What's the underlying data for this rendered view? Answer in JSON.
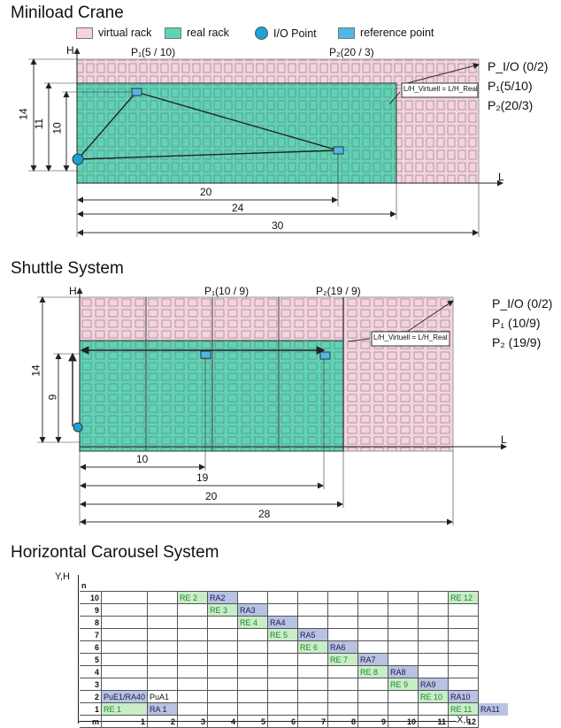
{
  "miniload": {
    "title": "Miniload Crane",
    "legend": {
      "virtual": "virtual rack",
      "real": "real rack",
      "io": "I/O Point",
      "ref": "reference point"
    },
    "colors": {
      "virtual": "#f5d3de",
      "real": "#5fd3b6",
      "io": "#1aa3d4",
      "ref": "#4fb8e6"
    },
    "axis_h": "H",
    "axis_l": "L",
    "p1_top": "P₁(5 / 10)",
    "p2_top": "P₂(20 / 3)",
    "ratio": "L/H_Virtuell = L/H_Real",
    "points": [
      "P_I/O (0/2)",
      "P₁(5/10)",
      "P₂(20/3)"
    ],
    "dims_vertical": [
      "14",
      "11",
      "10"
    ],
    "dims_horizontal": [
      "20",
      "24",
      "30"
    ]
  },
  "shuttle": {
    "title": "Shuttle System",
    "axis_h": "H",
    "axis_l": "L",
    "p1_top": "P₁(10 / 9)",
    "p2_top": "P₂(19 / 9)",
    "ratio": "L/H_Virtuell = L/H_Real",
    "points": [
      "P_I/O (0/2)",
      "P₁ (10/9)",
      "P₂ (19/9)"
    ],
    "dims_vertical": [
      "14",
      "9"
    ],
    "dims_horizontal": [
      "10",
      "19",
      "20",
      "28"
    ]
  },
  "carousel": {
    "title": "Horizontal Carousel System",
    "axis_y": "Y,H",
    "axis_x": "X,L",
    "corner_n": "n",
    "corner_m": "m",
    "col_numbers": [
      "1",
      "2",
      "3",
      "4",
      "5",
      "6",
      "7",
      "8",
      "9",
      "10",
      "11",
      "12"
    ],
    "rows": [
      {
        "n": "10",
        "cells": {
          "3": [
            "re",
            "RE 2"
          ],
          "4": [
            "ra",
            "RA2"
          ],
          "12": [
            "re",
            "RE 12"
          ]
        }
      },
      {
        "n": "9",
        "cells": {
          "4": [
            "re",
            "RE 3"
          ],
          "5": [
            "ra",
            "RA3"
          ]
        }
      },
      {
        "n": "8",
        "cells": {
          "5": [
            "re",
            "RE 4"
          ],
          "6": [
            "ra",
            "RA4"
          ]
        }
      },
      {
        "n": "7",
        "cells": {
          "6": [
            "re",
            "RE 5"
          ],
          "7": [
            "ra",
            "RA5"
          ]
        }
      },
      {
        "n": "6",
        "cells": {
          "7": [
            "re",
            "RE 6"
          ],
          "8": [
            "ra",
            "RA6"
          ]
        }
      },
      {
        "n": "5",
        "cells": {
          "8": [
            "re",
            "RE 7"
          ],
          "9": [
            "ra",
            "RA7"
          ]
        }
      },
      {
        "n": "4",
        "cells": {
          "9": [
            "re",
            "RE 8"
          ],
          "10": [
            "ra",
            "RA8"
          ]
        }
      },
      {
        "n": "3",
        "cells": {
          "10": [
            "re",
            "RE 9"
          ],
          "11": [
            "ra",
            "RA9"
          ]
        }
      },
      {
        "n": "2",
        "cells": {
          "1": [
            "ra",
            "PuE1/RA40"
          ],
          "2": [
            "plain",
            "PuA1"
          ],
          "11": [
            "re",
            "RE 10"
          ],
          "12": [
            "ra",
            "RA10"
          ]
        }
      },
      {
        "n": "1",
        "cells": {
          "1": [
            "re",
            "RE 1"
          ],
          "2": [
            "ra",
            "RA 1"
          ],
          "12": [
            "re",
            "RE 11"
          ],
          "13": [
            "ra",
            "RA11"
          ]
        }
      }
    ]
  }
}
